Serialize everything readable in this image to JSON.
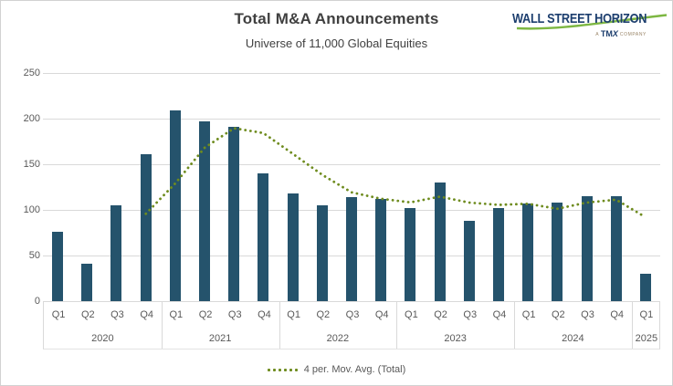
{
  "header": {
    "title": "Total M&A Announcements",
    "subtitle": "Universe of 11,000 Global Equities"
  },
  "logo": {
    "brand": "WALL STREET HORIZON",
    "tagline_prefix": "A",
    "tagline_brand": "TM",
    "tagline_brand_x": "X",
    "tagline_suffix": "COMPANY",
    "navy": "#1c3e6e",
    "green": "#7db742"
  },
  "legend": {
    "label": "4 per. Mov. Avg. (Total)"
  },
  "colors": {
    "bar": "#25536c",
    "moving_average": "#6f8c1f",
    "gridline": "#d9d9d9",
    "axis_text": "#595959",
    "title_text": "#404040"
  },
  "chart_data": {
    "type": "bar",
    "title": "Total M&A Announcements",
    "subtitle": "Universe of 11,000 Global Equities",
    "ylim": [
      0,
      250
    ],
    "yticks": [
      0,
      50,
      100,
      150,
      200,
      250
    ],
    "grid": true,
    "legend_position": "bottom",
    "groups": [
      {
        "year": "2020",
        "quarters": [
          "Q1",
          "Q2",
          "Q3",
          "Q4"
        ]
      },
      {
        "year": "2021",
        "quarters": [
          "Q1",
          "Q2",
          "Q3",
          "Q4"
        ]
      },
      {
        "year": "2022",
        "quarters": [
          "Q1",
          "Q2",
          "Q3",
          "Q4"
        ]
      },
      {
        "year": "2023",
        "quarters": [
          "Q1",
          "Q2",
          "Q3",
          "Q4"
        ]
      },
      {
        "year": "2024",
        "quarters": [
          "Q1",
          "Q2",
          "Q3",
          "Q4"
        ]
      },
      {
        "year": "2025",
        "quarters": [
          "Q1"
        ]
      }
    ],
    "series": [
      {
        "name": "Total",
        "type": "bar",
        "color": "#25536c",
        "values": [
          76,
          41,
          105,
          161,
          209,
          197,
          191,
          140,
          118,
          105,
          114,
          112,
          102,
          130,
          88,
          102,
          107,
          108,
          115,
          115,
          30
        ]
      },
      {
        "name": "4 per. Mov. Avg. (Total)",
        "type": "dotted-line",
        "color": "#6f8c1f",
        "values": [
          null,
          null,
          null,
          95.75,
          129,
          168,
          189.5,
          184.25,
          161.5,
          138.5,
          119.25,
          112.25,
          108.25,
          114.5,
          108,
          105.5,
          106.75,
          101.25,
          108,
          111.25,
          92
        ]
      }
    ]
  }
}
